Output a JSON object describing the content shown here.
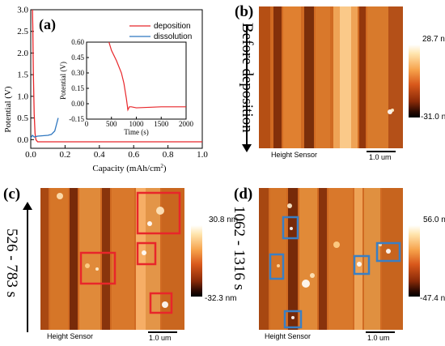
{
  "panel_a": {
    "letter": "(a)",
    "xlabel": "Capacity (mAh/cm",
    "xlabel_sup": "2",
    "xlabel_end": ")",
    "ylabel": "Potential (V)",
    "x_ticks": [
      "0.0",
      "0.2",
      "0.4",
      "0.6",
      "0.8",
      "1.0"
    ],
    "y_ticks": [
      "0.0",
      "0.5",
      "1.0",
      "1.5",
      "2.0",
      "2.5",
      "3.0"
    ],
    "legend": [
      {
        "label": "deposition",
        "color": "#e8262a"
      },
      {
        "label": "dissolution",
        "color": "#2f77c0"
      }
    ],
    "inset": {
      "xlabel": "Time (s)",
      "ylabel": "Potential (V)",
      "x_ticks": [
        "0",
        "500",
        "1000",
        "1500",
        "2000"
      ],
      "y_ticks": [
        "0.60",
        "0.45",
        "0.30",
        "0.15",
        "0.00",
        "-0.15"
      ]
    }
  },
  "chart_data": [
    {
      "type": "line",
      "xlabel": "Capacity (mAh/cm2)",
      "ylabel": "Potential (V)",
      "xlim": [
        0.0,
        1.0
      ],
      "ylim": [
        -0.2,
        3.0
      ],
      "series": [
        {
          "name": "deposition",
          "color": "#e8262a",
          "x": [
            0.01,
            0.012,
            0.015,
            0.02,
            0.025,
            0.03,
            0.04,
            0.06,
            0.1,
            0.3,
            0.5,
            0.7,
            0.9,
            1.0
          ],
          "y": [
            3.0,
            2.6,
            1.6,
            0.6,
            0.15,
            0.0,
            -0.05,
            -0.05,
            -0.05,
            -0.05,
            -0.05,
            -0.05,
            -0.05,
            -0.05
          ]
        },
        {
          "name": "dissolution",
          "color": "#2f77c0",
          "x": [
            0.0,
            0.005,
            0.01,
            0.02,
            0.04,
            0.07,
            0.1,
            0.12,
            0.14,
            0.15,
            0.16
          ],
          "y": [
            0.03,
            0.07,
            0.1,
            0.06,
            0.08,
            0.09,
            0.1,
            0.12,
            0.2,
            0.35,
            0.5
          ]
        }
      ]
    },
    {
      "type": "line",
      "xlabel": "Time (s)",
      "ylabel": "Potential (V)",
      "xlim": [
        0,
        2000
      ],
      "ylim": [
        -0.15,
        0.6
      ],
      "series": [
        {
          "name": "deposition",
          "color": "#e8262a",
          "x": [
            450,
            500,
            600,
            700,
            750,
            800,
            830,
            860,
            900,
            1000,
            1500,
            2000
          ],
          "y": [
            0.6,
            0.52,
            0.42,
            0.3,
            0.2,
            0.05,
            -0.06,
            -0.03,
            -0.03,
            -0.04,
            -0.03,
            -0.03
          ]
        }
      ]
    }
  ],
  "panel_b": {
    "letter": "(b)",
    "side_label": "Before deposition",
    "colorbar_max": "28.7 nm",
    "colorbar_min": "-31.0 nm",
    "sensor_label": "Height Sensor",
    "scale_label": "1.0 um"
  },
  "panel_c": {
    "letter": "(c)",
    "side_label": "526 - 783 s",
    "colorbar_max": "30.8 nm",
    "colorbar_min": "-32.3 nm",
    "sensor_label": "Height Sensor",
    "scale_label": "1.0 um",
    "box_color": "#e8262a"
  },
  "panel_d": {
    "letter": "(d)",
    "side_label": "1062 - 1316 s",
    "colorbar_max": "56.0 nm",
    "colorbar_min": "-47.4 nm",
    "sensor_label": "Height Sensor",
    "scale_label": "1.0 um",
    "box_color": "#3a7fc4"
  }
}
